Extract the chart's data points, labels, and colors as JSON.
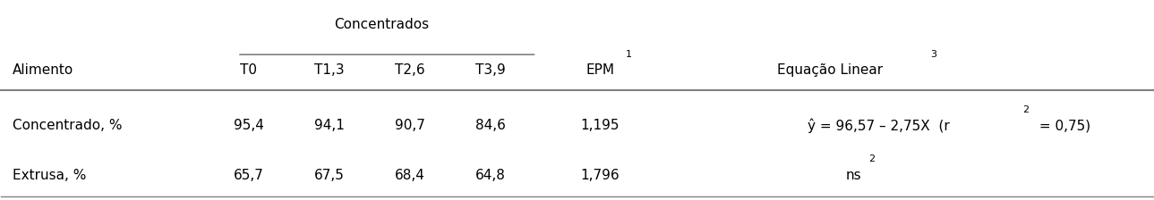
{
  "title_concentrados": "Concentrados",
  "col_alimento": "Alimento",
  "col_epm": "EPM",
  "col_epm_super": "1",
  "col_equacao": "Equação Linear",
  "col_equacao_super": "3",
  "sub_cols": [
    "T0",
    "T1,3",
    "T2,6",
    "T3,9"
  ],
  "rows": [
    {
      "label": "Concentrado, %",
      "values": [
        "95,4",
        "94,1",
        "90,7",
        "84,6"
      ],
      "epm": "1,195",
      "equacao": "ŷ = 96,57 – 2,75X  (r",
      "equacao_r2": "2",
      "equacao_end": " = 0,75)"
    },
    {
      "label": "Extrusa, %",
      "values": [
        "65,7",
        "67,5",
        "68,4",
        "64,8"
      ],
      "epm": "1,796",
      "equacao": "ns",
      "equacao_super": "2",
      "equacao_end": ""
    }
  ],
  "bg_color": "#ffffff",
  "text_color": "#000000",
  "line_color": "#808080",
  "font_size": 11
}
